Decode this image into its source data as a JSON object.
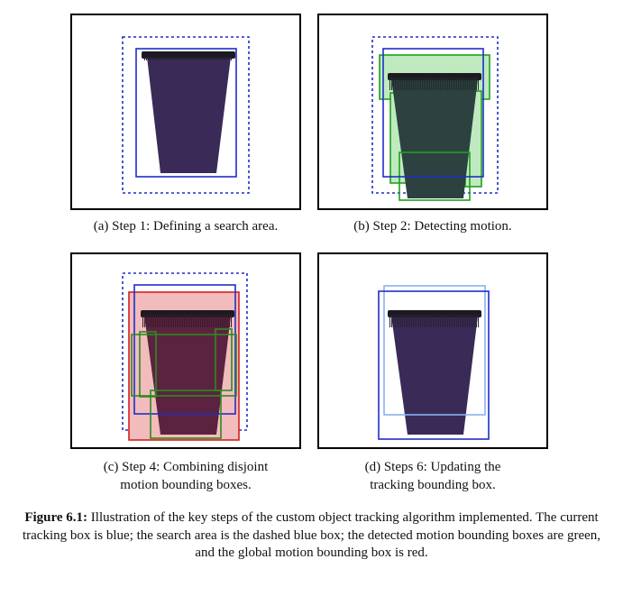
{
  "subfigures": [
    {
      "id": "a",
      "caption": "(a) Step 1: Defining a search area."
    },
    {
      "id": "b",
      "caption": "(b) Step 2: Detecting motion."
    },
    {
      "id": "c",
      "caption_line1": "(c) Step 4: Combining disjoint",
      "caption_line2": "motion bounding boxes."
    },
    {
      "id": "d",
      "caption_line1": "(d) Steps 6: Updating the",
      "caption_line2": "tracking bounding box."
    }
  ],
  "figure_caption": {
    "label": "Figure 6.1:",
    "text": " Illustration of the key steps of the custom object tracking algorithm implemented. The current tracking box is blue; the search area is the dashed blue box; the detected motion bounding boxes are green, and the global motion bounding box is red."
  },
  "colors": {
    "tracking_box": "#1f2fc8",
    "search_area": "#1f2fc8",
    "motion_box": "#1fa01f",
    "global_motion_box": "#d61f1f",
    "cup_body": "#3b2a55",
    "cup_rim": "#1a1a1a"
  }
}
